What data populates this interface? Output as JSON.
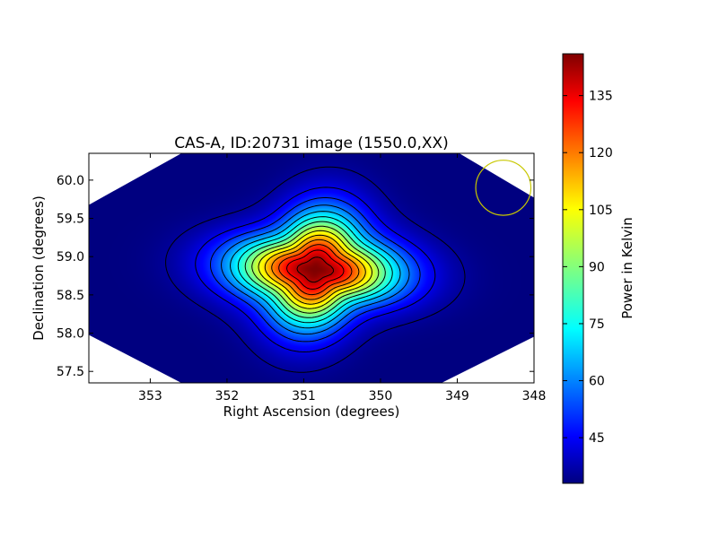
{
  "chart_data": {
    "type": "heatmap",
    "title": "CAS-A, ID:20731 image (1550.0,XX)",
    "xlabel": "Right Ascension (degrees)",
    "ylabel": "Declination (degrees)",
    "xlim": [
      353.8,
      348.0
    ],
    "ylim": [
      57.35,
      60.35
    ],
    "x_axis_inverted": true,
    "xticks": [
      353,
      352,
      351,
      350,
      349,
      348
    ],
    "xtick_labels": [
      "353",
      "352",
      "351",
      "350",
      "349",
      "348"
    ],
    "yticks": [
      57.5,
      58.0,
      58.5,
      59.0,
      59.5,
      60.0
    ],
    "ytick_labels": [
      "57.5",
      "58.0",
      "58.5",
      "59.0",
      "59.5",
      "60.0"
    ],
    "colorbar": {
      "label": "Power in Kelvin",
      "colormap": "jet",
      "range": [
        33,
        146
      ],
      "ticks": [
        45,
        60,
        75,
        90,
        105,
        120,
        135
      ],
      "tick_labels": [
        "45",
        "60",
        "75",
        "90",
        "105",
        "120",
        "135"
      ]
    },
    "source": {
      "ra": 350.85,
      "dec": 58.83,
      "peak_kelvin": 146,
      "background_kelvin": 33
    },
    "contour_levels_kelvin": [
      36,
      44,
      52,
      60,
      68,
      76,
      84,
      92,
      100,
      108,
      116,
      124,
      132,
      140
    ],
    "beam_circle": {
      "ra": 348.4,
      "dec": 59.9,
      "radius_deg": 0.36,
      "color": "#c8c800"
    },
    "grid": false,
    "legend": "none"
  }
}
